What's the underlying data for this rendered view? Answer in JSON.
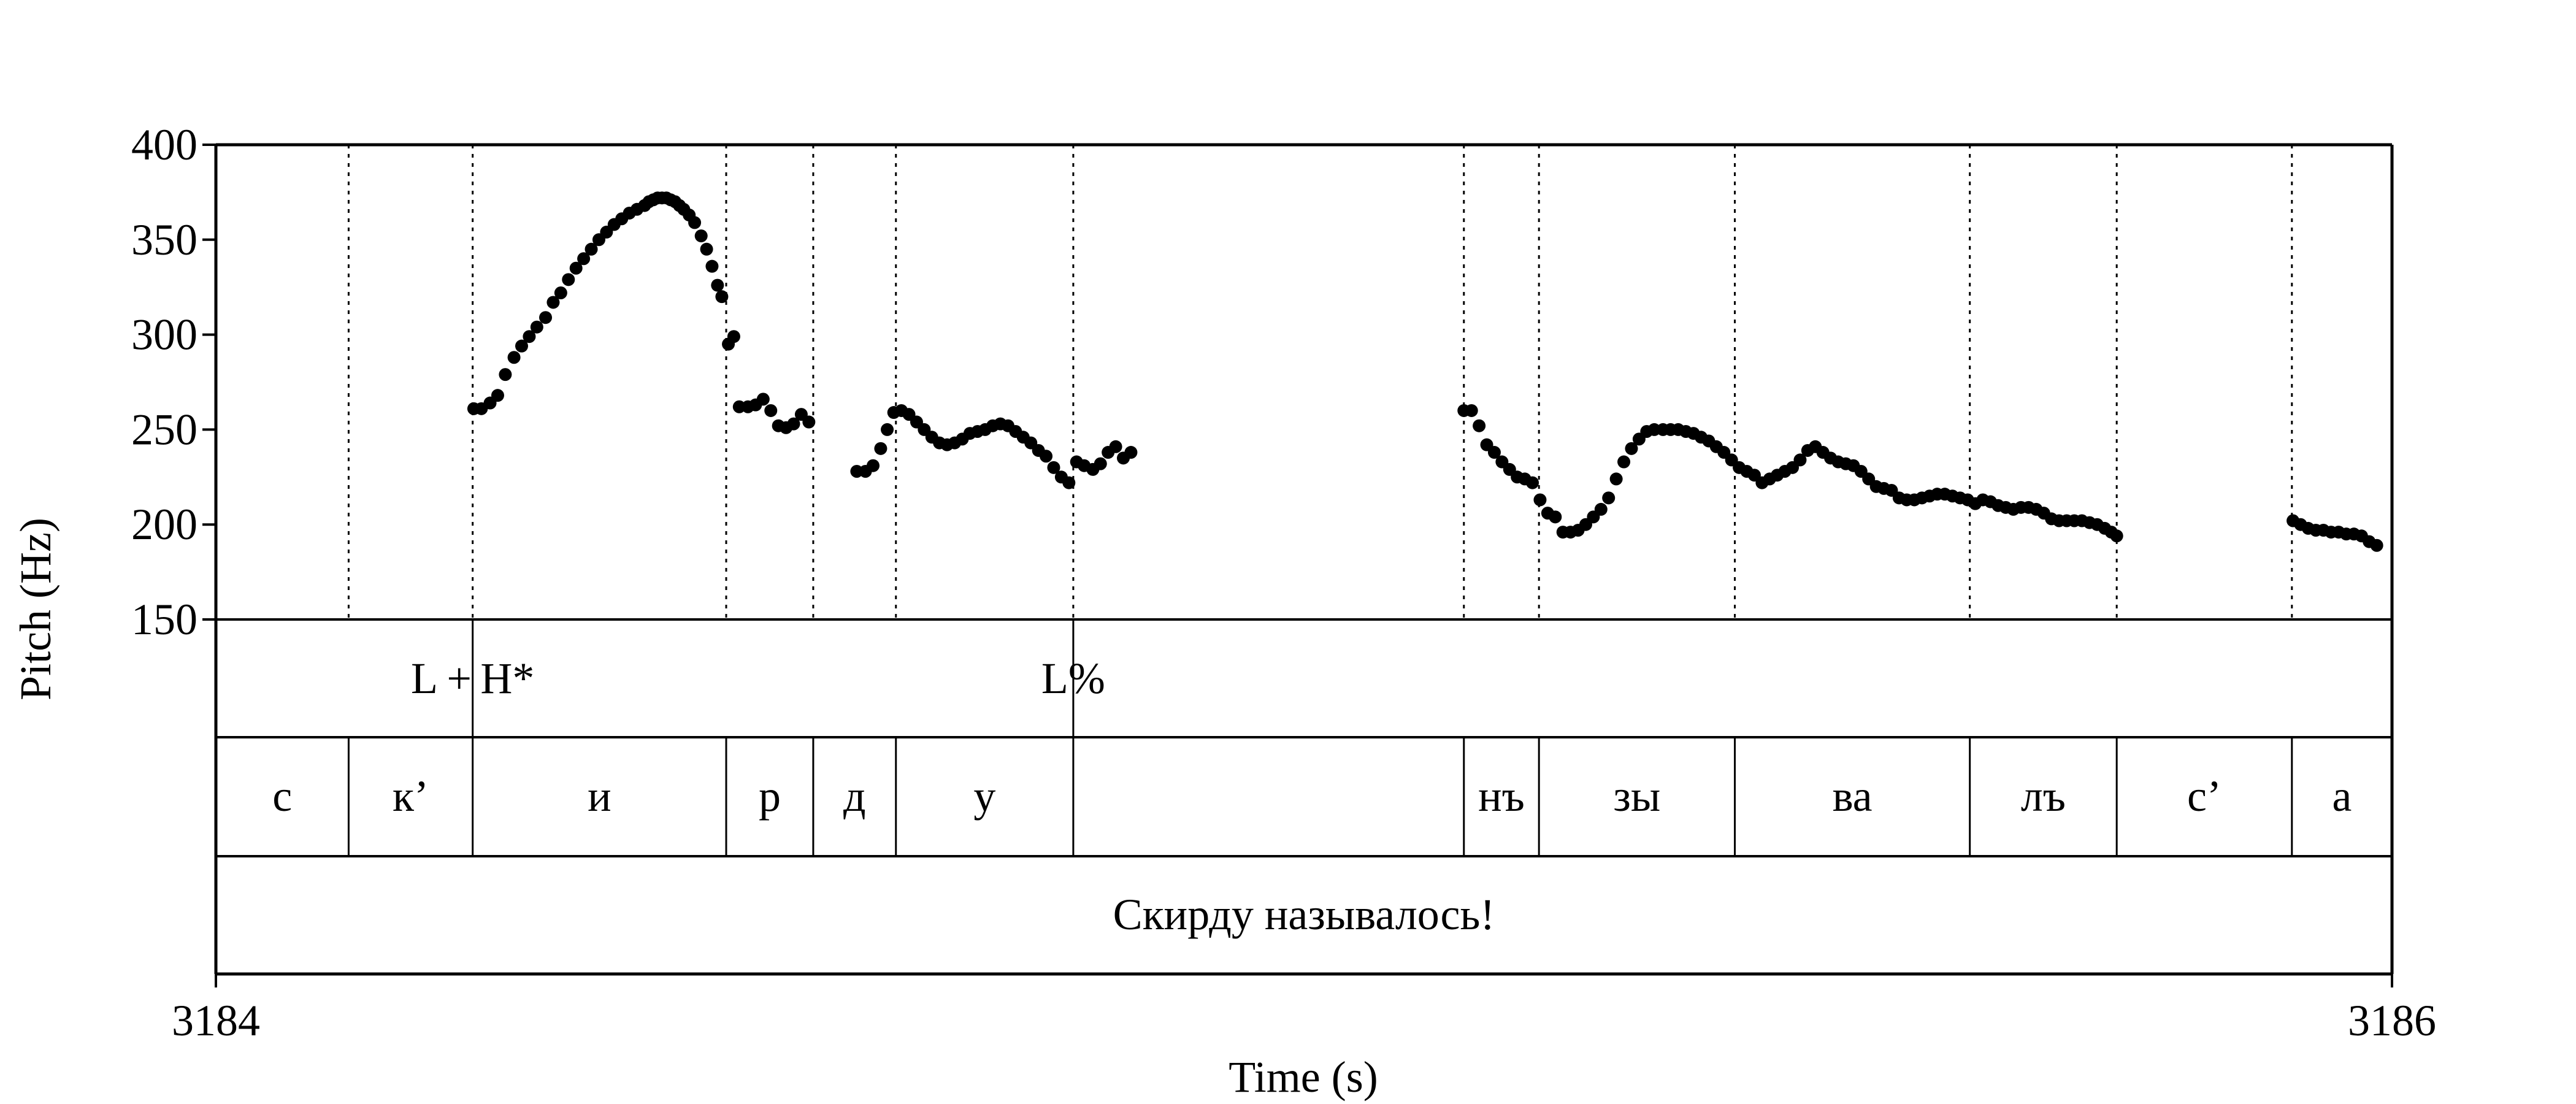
{
  "chart_data": {
    "type": "scatter",
    "title": "",
    "xlabel": "Time (s)",
    "ylabel": "Pitch (Hz)",
    "xlim": [
      3184,
      3186
    ],
    "ylim": [
      150,
      400
    ],
    "x_ticks": [
      {
        "value": 3184,
        "label": "3184"
      },
      {
        "value": 3186,
        "label": "3186"
      }
    ],
    "y_ticks": [
      {
        "value": 400,
        "label": "400"
      },
      {
        "value": 350,
        "label": "350"
      },
      {
        "value": 300,
        "label": "300"
      },
      {
        "value": 250,
        "label": "250"
      },
      {
        "value": 200,
        "label": "200"
      },
      {
        "value": 150,
        "label": "150"
      }
    ],
    "segment_boundaries": [
      3184.122,
      3184.236,
      3184.469,
      3184.549,
      3184.625,
      3184.788,
      3185.147,
      3185.216,
      3185.396,
      3185.612,
      3185.747,
      3185.908
    ],
    "tiers": [
      {
        "name": "tones",
        "items": [
          {
            "label": "L + H*",
            "time": 3184.236
          },
          {
            "label": "L%",
            "time": 3184.788
          }
        ]
      },
      {
        "name": "segments",
        "items": [
          {
            "label": "с",
            "start": 3184.0,
            "end": 3184.122
          },
          {
            "label": "к’",
            "start": 3184.122,
            "end": 3184.236
          },
          {
            "label": "и",
            "start": 3184.236,
            "end": 3184.469
          },
          {
            "label": "р",
            "start": 3184.469,
            "end": 3184.549
          },
          {
            "label": "д",
            "start": 3184.549,
            "end": 3184.625
          },
          {
            "label": "у",
            "start": 3184.625,
            "end": 3184.788
          },
          {
            "label": "",
            "start": 3184.788,
            "end": 3185.147
          },
          {
            "label": "нъ",
            "start": 3185.147,
            "end": 3185.216
          },
          {
            "label": "зы",
            "start": 3185.216,
            "end": 3185.396
          },
          {
            "label": "ва",
            "start": 3185.396,
            "end": 3185.612
          },
          {
            "label": "лъ",
            "start": 3185.612,
            "end": 3185.747
          },
          {
            "label": "с’",
            "start": 3185.747,
            "end": 3185.908
          },
          {
            "label": "а",
            "start": 3185.908,
            "end": 3186.0
          }
        ]
      },
      {
        "name": "sentence",
        "items": [
          {
            "label": "Скирду называлось!",
            "start": 3184.0,
            "end": 3186.0
          }
        ]
      }
    ],
    "series": [
      {
        "points": [
          [
            3184.237,
            261
          ],
          [
            3184.244,
            261
          ],
          [
            3184.252,
            264
          ],
          [
            3184.259,
            268
          ],
          [
            3184.266,
            279
          ],
          [
            3184.274,
            288
          ],
          [
            3184.281,
            294
          ],
          [
            3184.288,
            299
          ],
          [
            3184.295,
            304
          ],
          [
            3184.303,
            309
          ],
          [
            3184.31,
            317
          ],
          [
            3184.317,
            322
          ],
          [
            3184.324,
            329
          ],
          [
            3184.331,
            335
          ],
          [
            3184.338,
            340
          ],
          [
            3184.345,
            345
          ],
          [
            3184.352,
            350
          ],
          [
            3184.359,
            354
          ],
          [
            3184.366,
            358
          ],
          [
            3184.373,
            361
          ],
          [
            3184.38,
            364
          ],
          [
            3184.387,
            366
          ],
          [
            3184.394,
            368
          ],
          [
            3184.398,
            370
          ],
          [
            3184.402,
            371
          ],
          [
            3184.406,
            372
          ],
          [
            3184.41,
            372
          ],
          [
            3184.414,
            372
          ],
          [
            3184.418,
            371
          ],
          [
            3184.422,
            370
          ],
          [
            3184.426,
            368
          ],
          [
            3184.43,
            366
          ],
          [
            3184.435,
            363
          ],
          [
            3184.44,
            359
          ],
          [
            3184.446,
            352
          ],
          [
            3184.451,
            345
          ],
          [
            3184.456,
            336
          ],
          [
            3184.461,
            326
          ],
          [
            3184.465,
            320
          ],
          [
            3184.471,
            295
          ],
          [
            3184.476,
            299
          ],
          [
            3184.481,
            262
          ],
          [
            3184.489,
            262
          ],
          [
            3184.496,
            263
          ],
          [
            3184.503,
            266
          ],
          [
            3184.51,
            260
          ],
          [
            3184.517,
            252
          ],
          [
            3184.524,
            251
          ],
          [
            3184.531,
            253
          ],
          [
            3184.538,
            258
          ],
          [
            3184.545,
            254
          ],
          [
            3184.589,
            228
          ],
          [
            3184.597,
            228
          ],
          [
            3184.604,
            231
          ],
          [
            3184.611,
            240
          ],
          [
            3184.617,
            250
          ],
          [
            3184.623,
            259
          ],
          [
            3184.63,
            260
          ],
          [
            3184.637,
            258
          ],
          [
            3184.644,
            254
          ],
          [
            3184.651,
            250
          ],
          [
            3184.658,
            246
          ],
          [
            3184.665,
            243
          ],
          [
            3184.672,
            242
          ],
          [
            3184.679,
            243
          ],
          [
            3184.686,
            245
          ],
          [
            3184.693,
            248
          ],
          [
            3184.7,
            249
          ],
          [
            3184.707,
            250
          ],
          [
            3184.714,
            252
          ],
          [
            3184.721,
            253
          ],
          [
            3184.728,
            252
          ],
          [
            3184.735,
            249
          ],
          [
            3184.742,
            246
          ],
          [
            3184.749,
            243
          ],
          [
            3184.756,
            239
          ],
          [
            3184.763,
            236
          ],
          [
            3184.77,
            230
          ],
          [
            3184.777,
            225
          ],
          [
            3184.784,
            222
          ],
          [
            3184.791,
            233
          ],
          [
            3184.798,
            231
          ],
          [
            3184.806,
            229
          ],
          [
            3184.813,
            232
          ],
          [
            3184.82,
            238
          ],
          [
            3184.827,
            241
          ],
          [
            3184.834,
            235
          ],
          [
            3184.841,
            238
          ],
          [
            3185.147,
            260
          ],
          [
            3185.154,
            260
          ],
          [
            3185.161,
            252
          ],
          [
            3185.168,
            242
          ],
          [
            3185.175,
            238
          ],
          [
            3185.182,
            233
          ],
          [
            3185.189,
            229
          ],
          [
            3185.196,
            225
          ],
          [
            3185.203,
            224
          ],
          [
            3185.21,
            222
          ],
          [
            3185.217,
            213
          ],
          [
            3185.224,
            206
          ],
          [
            3185.231,
            204
          ],
          [
            3185.238,
            196
          ],
          [
            3185.245,
            196
          ],
          [
            3185.252,
            197
          ],
          [
            3185.259,
            200
          ],
          [
            3185.266,
            204
          ],
          [
            3185.273,
            208
          ],
          [
            3185.28,
            214
          ],
          [
            3185.287,
            224
          ],
          [
            3185.294,
            233
          ],
          [
            3185.301,
            240
          ],
          [
            3185.308,
            245
          ],
          [
            3185.315,
            249
          ],
          [
            3185.322,
            250
          ],
          [
            3185.33,
            250
          ],
          [
            3185.337,
            250
          ],
          [
            3185.344,
            250
          ],
          [
            3185.351,
            249
          ],
          [
            3185.358,
            248
          ],
          [
            3185.365,
            246
          ],
          [
            3185.372,
            244
          ],
          [
            3185.379,
            241
          ],
          [
            3185.386,
            238
          ],
          [
            3185.393,
            234
          ],
          [
            3185.4,
            230
          ],
          [
            3185.407,
            228
          ],
          [
            3185.414,
            226
          ],
          [
            3185.421,
            222
          ],
          [
            3185.428,
            224
          ],
          [
            3185.435,
            226
          ],
          [
            3185.442,
            228
          ],
          [
            3185.449,
            230
          ],
          [
            3185.456,
            234
          ],
          [
            3185.463,
            239
          ],
          [
            3185.47,
            241
          ],
          [
            3185.477,
            238
          ],
          [
            3185.484,
            235
          ],
          [
            3185.491,
            233
          ],
          [
            3185.498,
            232
          ],
          [
            3185.505,
            231
          ],
          [
            3185.512,
            228
          ],
          [
            3185.519,
            224
          ],
          [
            3185.526,
            220
          ],
          [
            3185.533,
            219
          ],
          [
            3185.54,
            218
          ],
          [
            3185.547,
            214
          ],
          [
            3185.554,
            213
          ],
          [
            3185.561,
            213
          ],
          [
            3185.568,
            214
          ],
          [
            3185.575,
            215
          ],
          [
            3185.582,
            216
          ],
          [
            3185.589,
            216
          ],
          [
            3185.596,
            215
          ],
          [
            3185.603,
            214
          ],
          [
            3185.61,
            213
          ],
          [
            3185.617,
            211
          ],
          [
            3185.624,
            213
          ],
          [
            3185.631,
            212
          ],
          [
            3185.638,
            210
          ],
          [
            3185.645,
            209
          ],
          [
            3185.652,
            208
          ],
          [
            3185.659,
            209
          ],
          [
            3185.666,
            209
          ],
          [
            3185.673,
            208
          ],
          [
            3185.68,
            206
          ],
          [
            3185.687,
            203
          ],
          [
            3185.694,
            202
          ],
          [
            3185.701,
            202
          ],
          [
            3185.708,
            202
          ],
          [
            3185.715,
            202
          ],
          [
            3185.722,
            201
          ],
          [
            3185.729,
            200
          ],
          [
            3185.736,
            198
          ],
          [
            3185.742,
            196
          ],
          [
            3185.747,
            194
          ],
          [
            3185.909,
            202
          ],
          [
            3185.916,
            200
          ],
          [
            3185.923,
            198
          ],
          [
            3185.93,
            197
          ],
          [
            3185.937,
            197
          ],
          [
            3185.944,
            196
          ],
          [
            3185.951,
            196
          ],
          [
            3185.958,
            195
          ],
          [
            3185.965,
            195
          ],
          [
            3185.972,
            194
          ],
          [
            3185.979,
            191
          ],
          [
            3185.986,
            189
          ]
        ]
      }
    ]
  }
}
